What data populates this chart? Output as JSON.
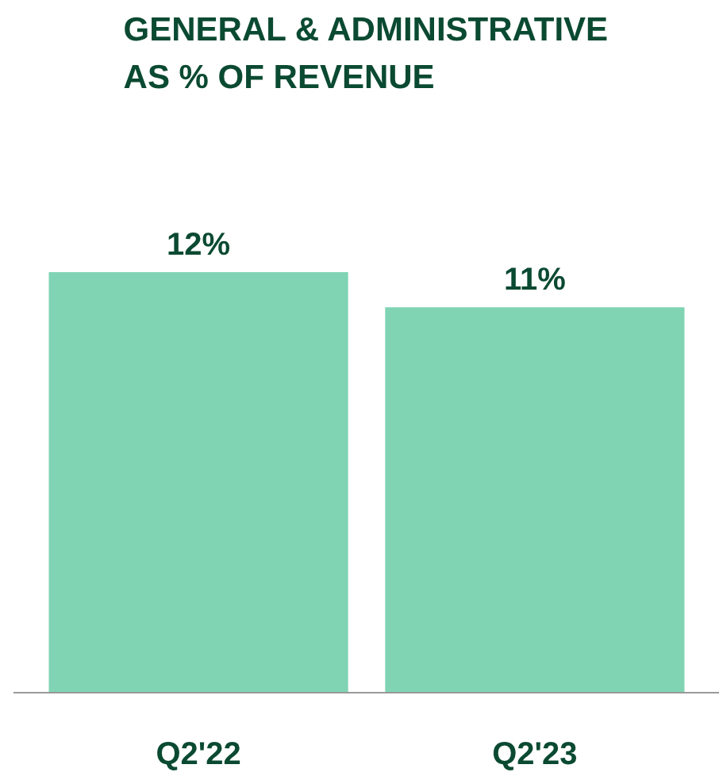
{
  "chart_data": {
    "type": "bar",
    "title": "GENERAL & ADMINISTRATIVE\nAS % OF REVENUE",
    "categories": [
      "Q2'22",
      "Q2'23"
    ],
    "values": [
      12,
      11
    ],
    "value_labels": [
      "12%",
      "11%"
    ],
    "color": "#80d4b4",
    "grid": false
  }
}
